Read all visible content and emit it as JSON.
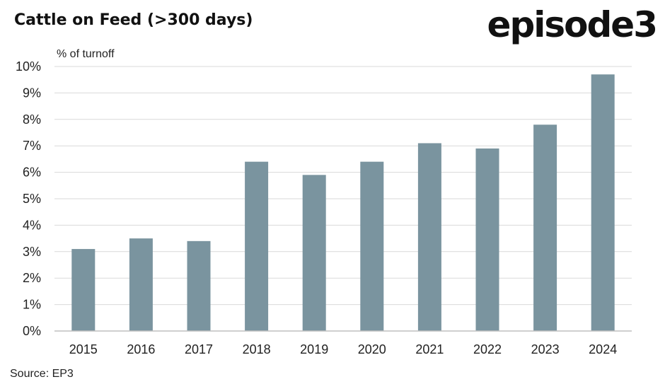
{
  "header": {
    "title": "Cattle on Feed (>300 days)",
    "logo": "episode3"
  },
  "footer": {
    "source": "Source: EP3"
  },
  "colors": {
    "bar": "#7a949f",
    "grid": "#d9d9d9",
    "axis": "#bfbfbf"
  },
  "chart_data": {
    "type": "bar",
    "title": "Cattle on Feed (>300 days)",
    "xlabel": "",
    "ylabel": "% of turnoff",
    "categories": [
      "2015",
      "2016",
      "2017",
      "2018",
      "2019",
      "2020",
      "2021",
      "2022",
      "2023",
      "2024"
    ],
    "values": [
      3.1,
      3.5,
      3.4,
      6.4,
      5.9,
      6.4,
      7.1,
      6.9,
      7.8,
      9.7
    ],
    "ylim": [
      0,
      10
    ],
    "yticks": [
      "0%",
      "1%",
      "2%",
      "3%",
      "4%",
      "5%",
      "6%",
      "7%",
      "8%",
      "9%",
      "10%"
    ],
    "grid": true,
    "legend": "none"
  }
}
